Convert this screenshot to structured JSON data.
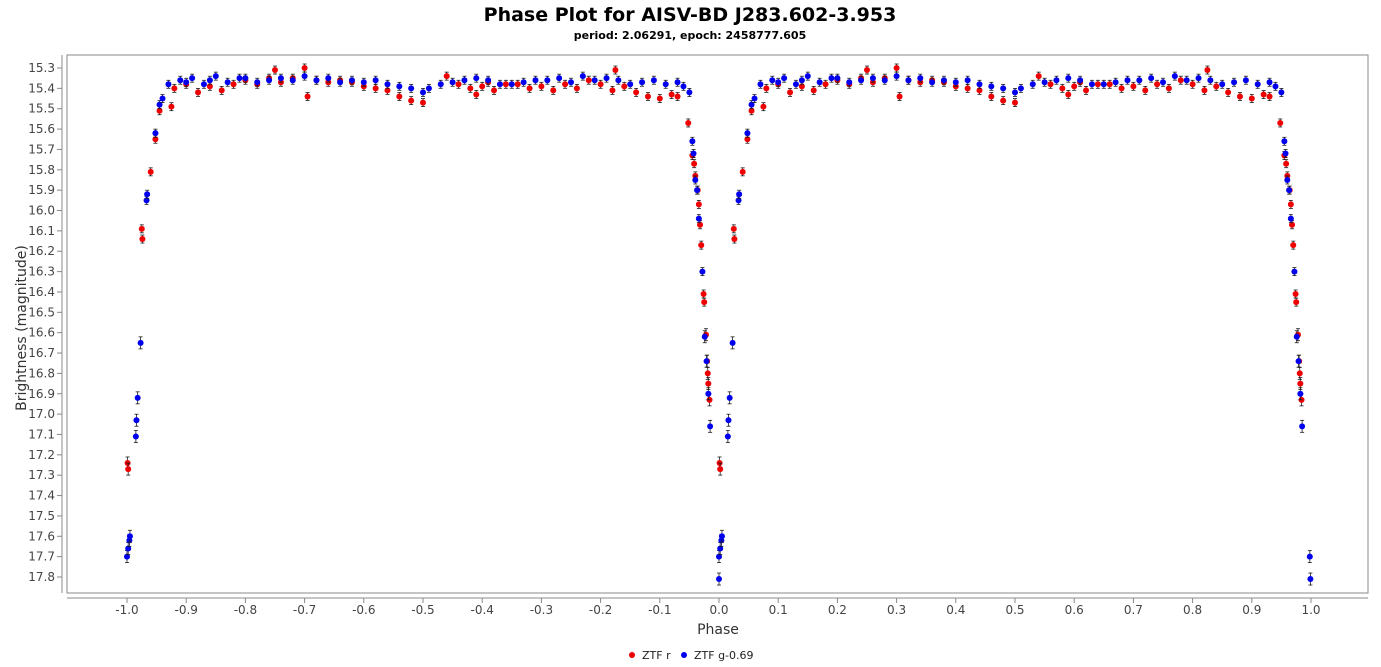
{
  "chart_data": {
    "type": "scatter",
    "title": "Phase Plot for AISV-BD J283.602-3.953",
    "subtitle": "period: 2.06291, epoch: 2458777.605",
    "xlabel": "Phase",
    "ylabel": "Brightness (magnitude)",
    "xlim": [
      -1.1,
      1.1
    ],
    "ylim": [
      15.25,
      17.88
    ],
    "y_inverted": true,
    "x_ticks": [
      -1.0,
      -0.9,
      -0.8,
      -0.7,
      -0.6,
      -0.5,
      -0.4,
      -0.3,
      -0.2,
      -0.1,
      0.0,
      0.1,
      0.2,
      0.3,
      0.4,
      0.5,
      0.6,
      0.7,
      0.8,
      0.9,
      1.0
    ],
    "x_tick_labels": [
      "-1.0",
      "-0.9",
      "-0.8",
      "-0.7",
      "-0.6",
      "-0.5",
      "-0.4",
      "-0.3",
      "-0.2",
      "-0.1",
      "0.0",
      "0.1",
      "0.2",
      "0.3",
      "0.4",
      "0.5",
      "0.6",
      "0.7",
      "0.8",
      "0.9",
      "1.0"
    ],
    "y_ticks": [
      15.3,
      15.4,
      15.5,
      15.6,
      15.7,
      15.8,
      15.9,
      16.0,
      16.1,
      16.2,
      16.3,
      16.4,
      16.5,
      16.6,
      16.7,
      16.8,
      16.9,
      17.0,
      17.1,
      17.2,
      17.3,
      17.4,
      17.5,
      17.6,
      17.7,
      17.8
    ],
    "y_tick_labels": [
      "15.3",
      "15.4",
      "15.5",
      "15.6",
      "15.7",
      "15.8",
      "15.9",
      "16.0",
      "16.1",
      "16.2",
      "16.3",
      "16.4",
      "16.5",
      "16.6",
      "16.7",
      "16.8",
      "16.9",
      "17.0",
      "17.1",
      "17.2",
      "17.3",
      "17.4",
      "17.5",
      "17.6",
      "17.7",
      "17.8"
    ],
    "grid": false,
    "legend_position": "bottom-center",
    "series": [
      {
        "name": "ZTF r",
        "color": "#ee0000",
        "points": [
          [
            -0.999,
            17.24
          ],
          [
            -0.998,
            17.27
          ],
          [
            -0.975,
            16.09
          ],
          [
            -0.974,
            16.14
          ],
          [
            -0.96,
            15.81
          ],
          [
            -0.952,
            15.65
          ],
          [
            -0.945,
            15.51
          ],
          [
            -0.925,
            15.49
          ],
          [
            -0.92,
            15.4
          ],
          [
            -0.9,
            15.38
          ],
          [
            -0.88,
            15.42
          ],
          [
            -0.86,
            15.39
          ],
          [
            -0.84,
            15.41
          ],
          [
            -0.82,
            15.38
          ],
          [
            -0.8,
            15.36
          ],
          [
            -0.78,
            15.38
          ],
          [
            -0.76,
            15.35
          ],
          [
            -0.75,
            15.31
          ],
          [
            -0.74,
            15.37
          ],
          [
            -0.72,
            15.35
          ],
          [
            -0.7,
            15.3
          ],
          [
            -0.695,
            15.44
          ],
          [
            -0.68,
            15.36
          ],
          [
            -0.66,
            15.37
          ],
          [
            -0.64,
            15.36
          ],
          [
            -0.62,
            15.37
          ],
          [
            -0.6,
            15.39
          ],
          [
            -0.58,
            15.4
          ],
          [
            -0.56,
            15.41
          ],
          [
            -0.54,
            15.44
          ],
          [
            -0.52,
            15.46
          ],
          [
            -0.5,
            15.47
          ],
          [
            -0.46,
            15.34
          ],
          [
            -0.44,
            15.38
          ],
          [
            -0.42,
            15.4
          ],
          [
            -0.41,
            15.43
          ],
          [
            -0.4,
            15.39
          ],
          [
            -0.39,
            15.37
          ],
          [
            -0.38,
            15.41
          ],
          [
            -0.36,
            15.38
          ],
          [
            -0.34,
            15.38
          ],
          [
            -0.32,
            15.4
          ],
          [
            -0.3,
            15.39
          ],
          [
            -0.28,
            15.41
          ],
          [
            -0.26,
            15.38
          ],
          [
            -0.24,
            15.4
          ],
          [
            -0.22,
            15.36
          ],
          [
            -0.2,
            15.38
          ],
          [
            -0.18,
            15.41
          ],
          [
            -0.175,
            15.31
          ],
          [
            -0.16,
            15.39
          ],
          [
            -0.14,
            15.42
          ],
          [
            -0.12,
            15.44
          ],
          [
            -0.1,
            15.45
          ],
          [
            -0.08,
            15.43
          ],
          [
            -0.07,
            15.44
          ],
          [
            -0.052,
            15.57
          ],
          [
            -0.045,
            15.73
          ],
          [
            -0.042,
            15.77
          ],
          [
            -0.04,
            15.83
          ],
          [
            -0.036,
            15.9
          ],
          [
            -0.034,
            15.97
          ],
          [
            -0.032,
            16.07
          ],
          [
            -0.03,
            16.17
          ],
          [
            -0.026,
            16.41
          ],
          [
            -0.025,
            16.45
          ],
          [
            -0.022,
            16.61
          ],
          [
            -0.02,
            16.74
          ],
          [
            -0.019,
            16.8
          ],
          [
            -0.018,
            16.85
          ],
          [
            -0.016,
            16.93
          ],
          [
            0.001,
            17.24
          ],
          [
            0.002,
            17.27
          ],
          [
            0.025,
            16.09
          ],
          [
            0.026,
            16.14
          ],
          [
            0.04,
            15.81
          ],
          [
            0.048,
            15.65
          ],
          [
            0.055,
            15.51
          ],
          [
            0.075,
            15.49
          ],
          [
            0.08,
            15.4
          ],
          [
            0.1,
            15.38
          ],
          [
            0.12,
            15.42
          ],
          [
            0.14,
            15.39
          ],
          [
            0.16,
            15.41
          ],
          [
            0.18,
            15.38
          ],
          [
            0.2,
            15.36
          ],
          [
            0.22,
            15.38
          ],
          [
            0.24,
            15.35
          ],
          [
            0.25,
            15.31
          ],
          [
            0.26,
            15.37
          ],
          [
            0.28,
            15.35
          ],
          [
            0.3,
            15.3
          ],
          [
            0.305,
            15.44
          ],
          [
            0.32,
            15.36
          ],
          [
            0.34,
            15.37
          ],
          [
            0.36,
            15.36
          ],
          [
            0.38,
            15.37
          ],
          [
            0.4,
            15.39
          ],
          [
            0.42,
            15.4
          ],
          [
            0.44,
            15.41
          ],
          [
            0.46,
            15.44
          ],
          [
            0.48,
            15.46
          ],
          [
            0.5,
            15.47
          ],
          [
            0.54,
            15.34
          ],
          [
            0.56,
            15.38
          ],
          [
            0.58,
            15.4
          ],
          [
            0.59,
            15.43
          ],
          [
            0.6,
            15.39
          ],
          [
            0.61,
            15.37
          ],
          [
            0.62,
            15.41
          ],
          [
            0.64,
            15.38
          ],
          [
            0.66,
            15.38
          ],
          [
            0.68,
            15.4
          ],
          [
            0.7,
            15.39
          ],
          [
            0.72,
            15.41
          ],
          [
            0.74,
            15.38
          ],
          [
            0.76,
            15.4
          ],
          [
            0.78,
            15.36
          ],
          [
            0.8,
            15.38
          ],
          [
            0.82,
            15.41
          ],
          [
            0.825,
            15.31
          ],
          [
            0.84,
            15.39
          ],
          [
            0.86,
            15.42
          ],
          [
            0.88,
            15.44
          ],
          [
            0.9,
            15.45
          ],
          [
            0.92,
            15.43
          ],
          [
            0.93,
            15.44
          ],
          [
            0.948,
            15.57
          ],
          [
            0.955,
            15.73
          ],
          [
            0.958,
            15.77
          ],
          [
            0.96,
            15.83
          ],
          [
            0.964,
            15.9
          ],
          [
            0.966,
            15.97
          ],
          [
            0.968,
            16.07
          ],
          [
            0.97,
            16.17
          ],
          [
            0.974,
            16.41
          ],
          [
            0.975,
            16.45
          ],
          [
            0.978,
            16.61
          ],
          [
            0.98,
            16.74
          ],
          [
            0.981,
            16.8
          ],
          [
            0.982,
            16.85
          ],
          [
            0.984,
            16.93
          ]
        ]
      },
      {
        "name": "ZTF g-0.69",
        "color": "#0000ee",
        "points": [
          [
            -1.0,
            17.7
          ],
          [
            -0.998,
            17.66
          ],
          [
            -0.996,
            17.62
          ],
          [
            -0.995,
            17.6
          ],
          [
            -0.985,
            17.11
          ],
          [
            -0.984,
            17.03
          ],
          [
            -0.982,
            16.92
          ],
          [
            -0.977,
            16.65
          ],
          [
            -0.967,
            15.95
          ],
          [
            -0.966,
            15.92
          ],
          [
            -0.952,
            15.62
          ],
          [
            -0.945,
            15.48
          ],
          [
            -0.94,
            15.45
          ],
          [
            -0.93,
            15.38
          ],
          [
            -0.91,
            15.36
          ],
          [
            -0.9,
            15.37
          ],
          [
            -0.89,
            15.35
          ],
          [
            -0.87,
            15.38
          ],
          [
            -0.86,
            15.36
          ],
          [
            -0.85,
            15.34
          ],
          [
            -0.83,
            15.37
          ],
          [
            -0.81,
            15.35
          ],
          [
            -0.8,
            15.35
          ],
          [
            -0.78,
            15.37
          ],
          [
            -0.76,
            15.36
          ],
          [
            -0.74,
            15.35
          ],
          [
            -0.72,
            15.36
          ],
          [
            -0.7,
            15.34
          ],
          [
            -0.68,
            15.36
          ],
          [
            -0.66,
            15.35
          ],
          [
            -0.64,
            15.37
          ],
          [
            -0.62,
            15.36
          ],
          [
            -0.6,
            15.37
          ],
          [
            -0.58,
            15.36
          ],
          [
            -0.56,
            15.38
          ],
          [
            -0.54,
            15.39
          ],
          [
            -0.52,
            15.4
          ],
          [
            -0.5,
            15.42
          ],
          [
            -0.49,
            15.4
          ],
          [
            -0.47,
            15.38
          ],
          [
            -0.45,
            15.37
          ],
          [
            -0.43,
            15.36
          ],
          [
            -0.41,
            15.35
          ],
          [
            -0.39,
            15.36
          ],
          [
            -0.37,
            15.38
          ],
          [
            -0.35,
            15.38
          ],
          [
            -0.33,
            15.37
          ],
          [
            -0.31,
            15.36
          ],
          [
            -0.29,
            15.36
          ],
          [
            -0.27,
            15.35
          ],
          [
            -0.25,
            15.37
          ],
          [
            -0.23,
            15.34
          ],
          [
            -0.21,
            15.36
          ],
          [
            -0.19,
            15.35
          ],
          [
            -0.17,
            15.36
          ],
          [
            -0.15,
            15.38
          ],
          [
            -0.13,
            15.37
          ],
          [
            -0.11,
            15.36
          ],
          [
            -0.09,
            15.38
          ],
          [
            -0.07,
            15.37
          ],
          [
            -0.06,
            15.39
          ],
          [
            -0.05,
            15.42
          ],
          [
            -0.045,
            15.66
          ],
          [
            -0.043,
            15.72
          ],
          [
            -0.04,
            15.85
          ],
          [
            -0.037,
            15.9
          ],
          [
            -0.034,
            16.04
          ],
          [
            -0.028,
            16.3
          ],
          [
            -0.024,
            16.62
          ],
          [
            -0.021,
            16.74
          ],
          [
            -0.018,
            16.9
          ],
          [
            -0.015,
            17.06
          ],
          [
            0.0,
            17.7
          ],
          [
            0.002,
            17.66
          ],
          [
            0.004,
            17.62
          ],
          [
            0.005,
            17.6
          ],
          [
            0.015,
            17.11
          ],
          [
            0.016,
            17.03
          ],
          [
            0.018,
            16.92
          ],
          [
            0.023,
            16.65
          ],
          [
            0.033,
            15.95
          ],
          [
            0.034,
            15.92
          ],
          [
            0.048,
            15.62
          ],
          [
            0.055,
            15.48
          ],
          [
            0.06,
            15.45
          ],
          [
            0.07,
            15.38
          ],
          [
            0.09,
            15.36
          ],
          [
            0.1,
            15.37
          ],
          [
            0.11,
            15.35
          ],
          [
            0.13,
            15.38
          ],
          [
            0.14,
            15.36
          ],
          [
            0.15,
            15.34
          ],
          [
            0.17,
            15.37
          ],
          [
            0.19,
            15.35
          ],
          [
            0.2,
            15.35
          ],
          [
            0.22,
            15.37
          ],
          [
            0.24,
            15.36
          ],
          [
            0.26,
            15.35
          ],
          [
            0.28,
            15.36
          ],
          [
            0.3,
            15.34
          ],
          [
            0.32,
            15.36
          ],
          [
            0.34,
            15.35
          ],
          [
            0.36,
            15.37
          ],
          [
            0.38,
            15.36
          ],
          [
            0.4,
            15.37
          ],
          [
            0.42,
            15.36
          ],
          [
            0.44,
            15.38
          ],
          [
            0.46,
            15.39
          ],
          [
            0.48,
            15.4
          ],
          [
            0.5,
            15.42
          ],
          [
            0.51,
            15.4
          ],
          [
            0.53,
            15.38
          ],
          [
            0.55,
            15.37
          ],
          [
            0.57,
            15.36
          ],
          [
            0.59,
            15.35
          ],
          [
            0.61,
            15.36
          ],
          [
            0.63,
            15.38
          ],
          [
            0.65,
            15.38
          ],
          [
            0.67,
            15.37
          ],
          [
            0.69,
            15.36
          ],
          [
            0.71,
            15.36
          ],
          [
            0.73,
            15.35
          ],
          [
            0.75,
            15.37
          ],
          [
            0.77,
            15.34
          ],
          [
            0.79,
            15.36
          ],
          [
            0.81,
            15.35
          ],
          [
            0.83,
            15.36
          ],
          [
            0.85,
            15.38
          ],
          [
            0.87,
            15.37
          ],
          [
            0.89,
            15.36
          ],
          [
            0.91,
            15.38
          ],
          [
            0.93,
            15.37
          ],
          [
            0.94,
            15.39
          ],
          [
            0.95,
            15.42
          ],
          [
            0.955,
            15.66
          ],
          [
            0.957,
            15.72
          ],
          [
            0.96,
            15.85
          ],
          [
            0.963,
            15.9
          ],
          [
            0.966,
            16.04
          ],
          [
            0.972,
            16.3
          ],
          [
            0.976,
            16.62
          ],
          [
            0.979,
            16.74
          ],
          [
            0.982,
            16.9
          ],
          [
            0.985,
            17.06
          ],
          [
            0.998,
            17.7
          ],
          [
            0.999,
            17.81
          ],
          [
            0.0,
            17.81
          ]
        ]
      }
    ]
  }
}
